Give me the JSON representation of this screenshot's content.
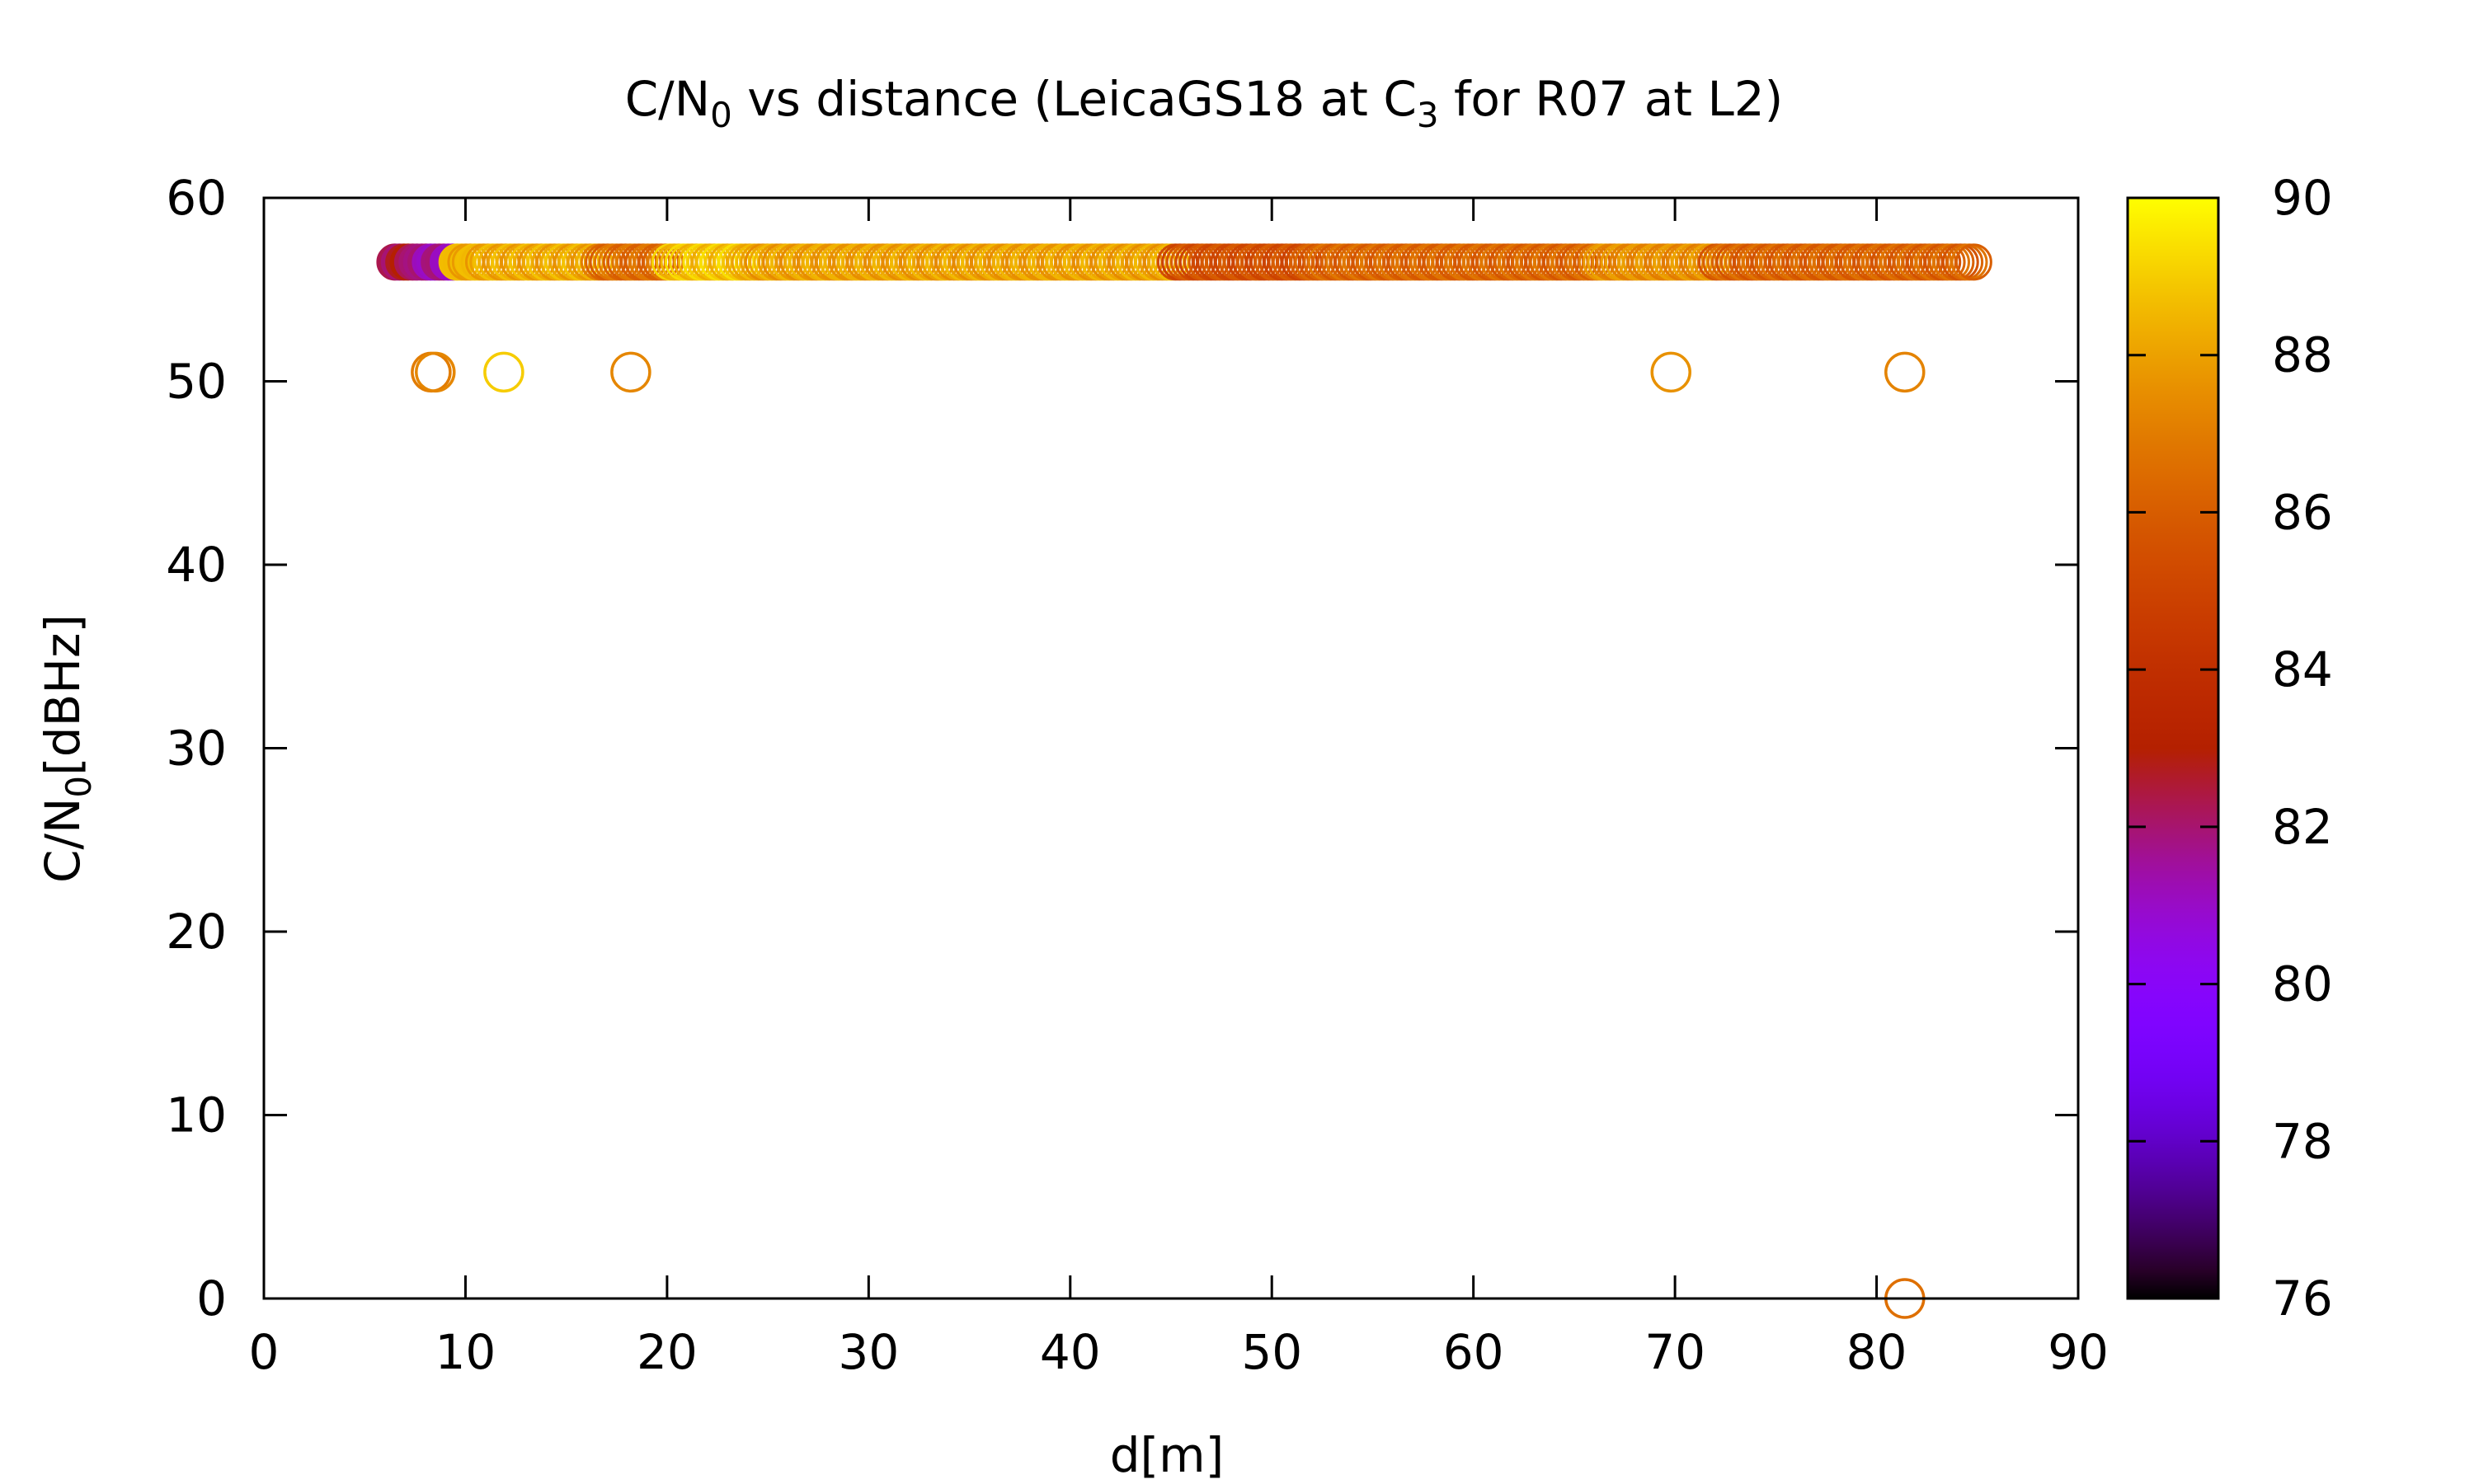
{
  "chart_data": {
    "type": "scatter",
    "title": {
      "part1": "C/N",
      "sub1": "0",
      "part2": " vs distance (LeicaGS18 at C",
      "sub2": "3",
      "part3": " for R07 at L2)"
    },
    "xlabel": "d[m]",
    "ylabel": {
      "main": "C/N",
      "sub": "0",
      "rest": "[dBHz]"
    },
    "xlim": [
      0,
      90
    ],
    "ylim": [
      0,
      60
    ],
    "xticks": [
      0,
      10,
      20,
      30,
      40,
      50,
      60,
      70,
      80,
      90
    ],
    "yticks": [
      0,
      10,
      20,
      30,
      40,
      50,
      60
    ],
    "colorbar": {
      "range": [
        76,
        90
      ],
      "ticks": [
        76,
        78,
        80,
        82,
        84,
        86,
        88,
        90
      ],
      "palette": "gnuplot-pm3d-black-purple-red-yellow"
    },
    "grid": false,
    "main_series": {
      "y": 56.5,
      "x_range": [
        6.5,
        85
      ],
      "color_value_segments": [
        {
          "x": [
            6.5,
            7.8
          ],
          "c": 82.5
        },
        {
          "x": [
            7.8,
            9.5
          ],
          "c": 81.5
        },
        {
          "x": [
            9.5,
            16.5
          ],
          "c": 88.2
        },
        {
          "x": [
            16.5,
            20.0
          ],
          "c": 86.5
        },
        {
          "x": [
            20.0,
            24.0
          ],
          "c": 88.8
        },
        {
          "x": [
            24.0,
            45.0
          ],
          "c": 88.0
        },
        {
          "x": [
            45.0,
            52.0
          ],
          "c": 85.5
        },
        {
          "x": [
            52.0,
            66.0
          ],
          "c": 86.3
        },
        {
          "x": [
            66.0,
            72.0
          ],
          "c": 87.5
        },
        {
          "x": [
            72.0,
            85.0
          ],
          "c": 86.2
        }
      ]
    },
    "outliers": [
      {
        "x": 8.3,
        "y": 50.5,
        "c": 87.0
      },
      {
        "x": 8.5,
        "y": 50.5,
        "c": 87.3
      },
      {
        "x": 11.9,
        "y": 50.5,
        "c": 89.0
      },
      {
        "x": 18.2,
        "y": 50.5,
        "c": 87.3
      },
      {
        "x": 69.8,
        "y": 50.5,
        "c": 87.6
      },
      {
        "x": 81.4,
        "y": 50.5,
        "c": 87.2
      },
      {
        "x": 81.4,
        "y": 0,
        "c": 86.6
      }
    ]
  }
}
